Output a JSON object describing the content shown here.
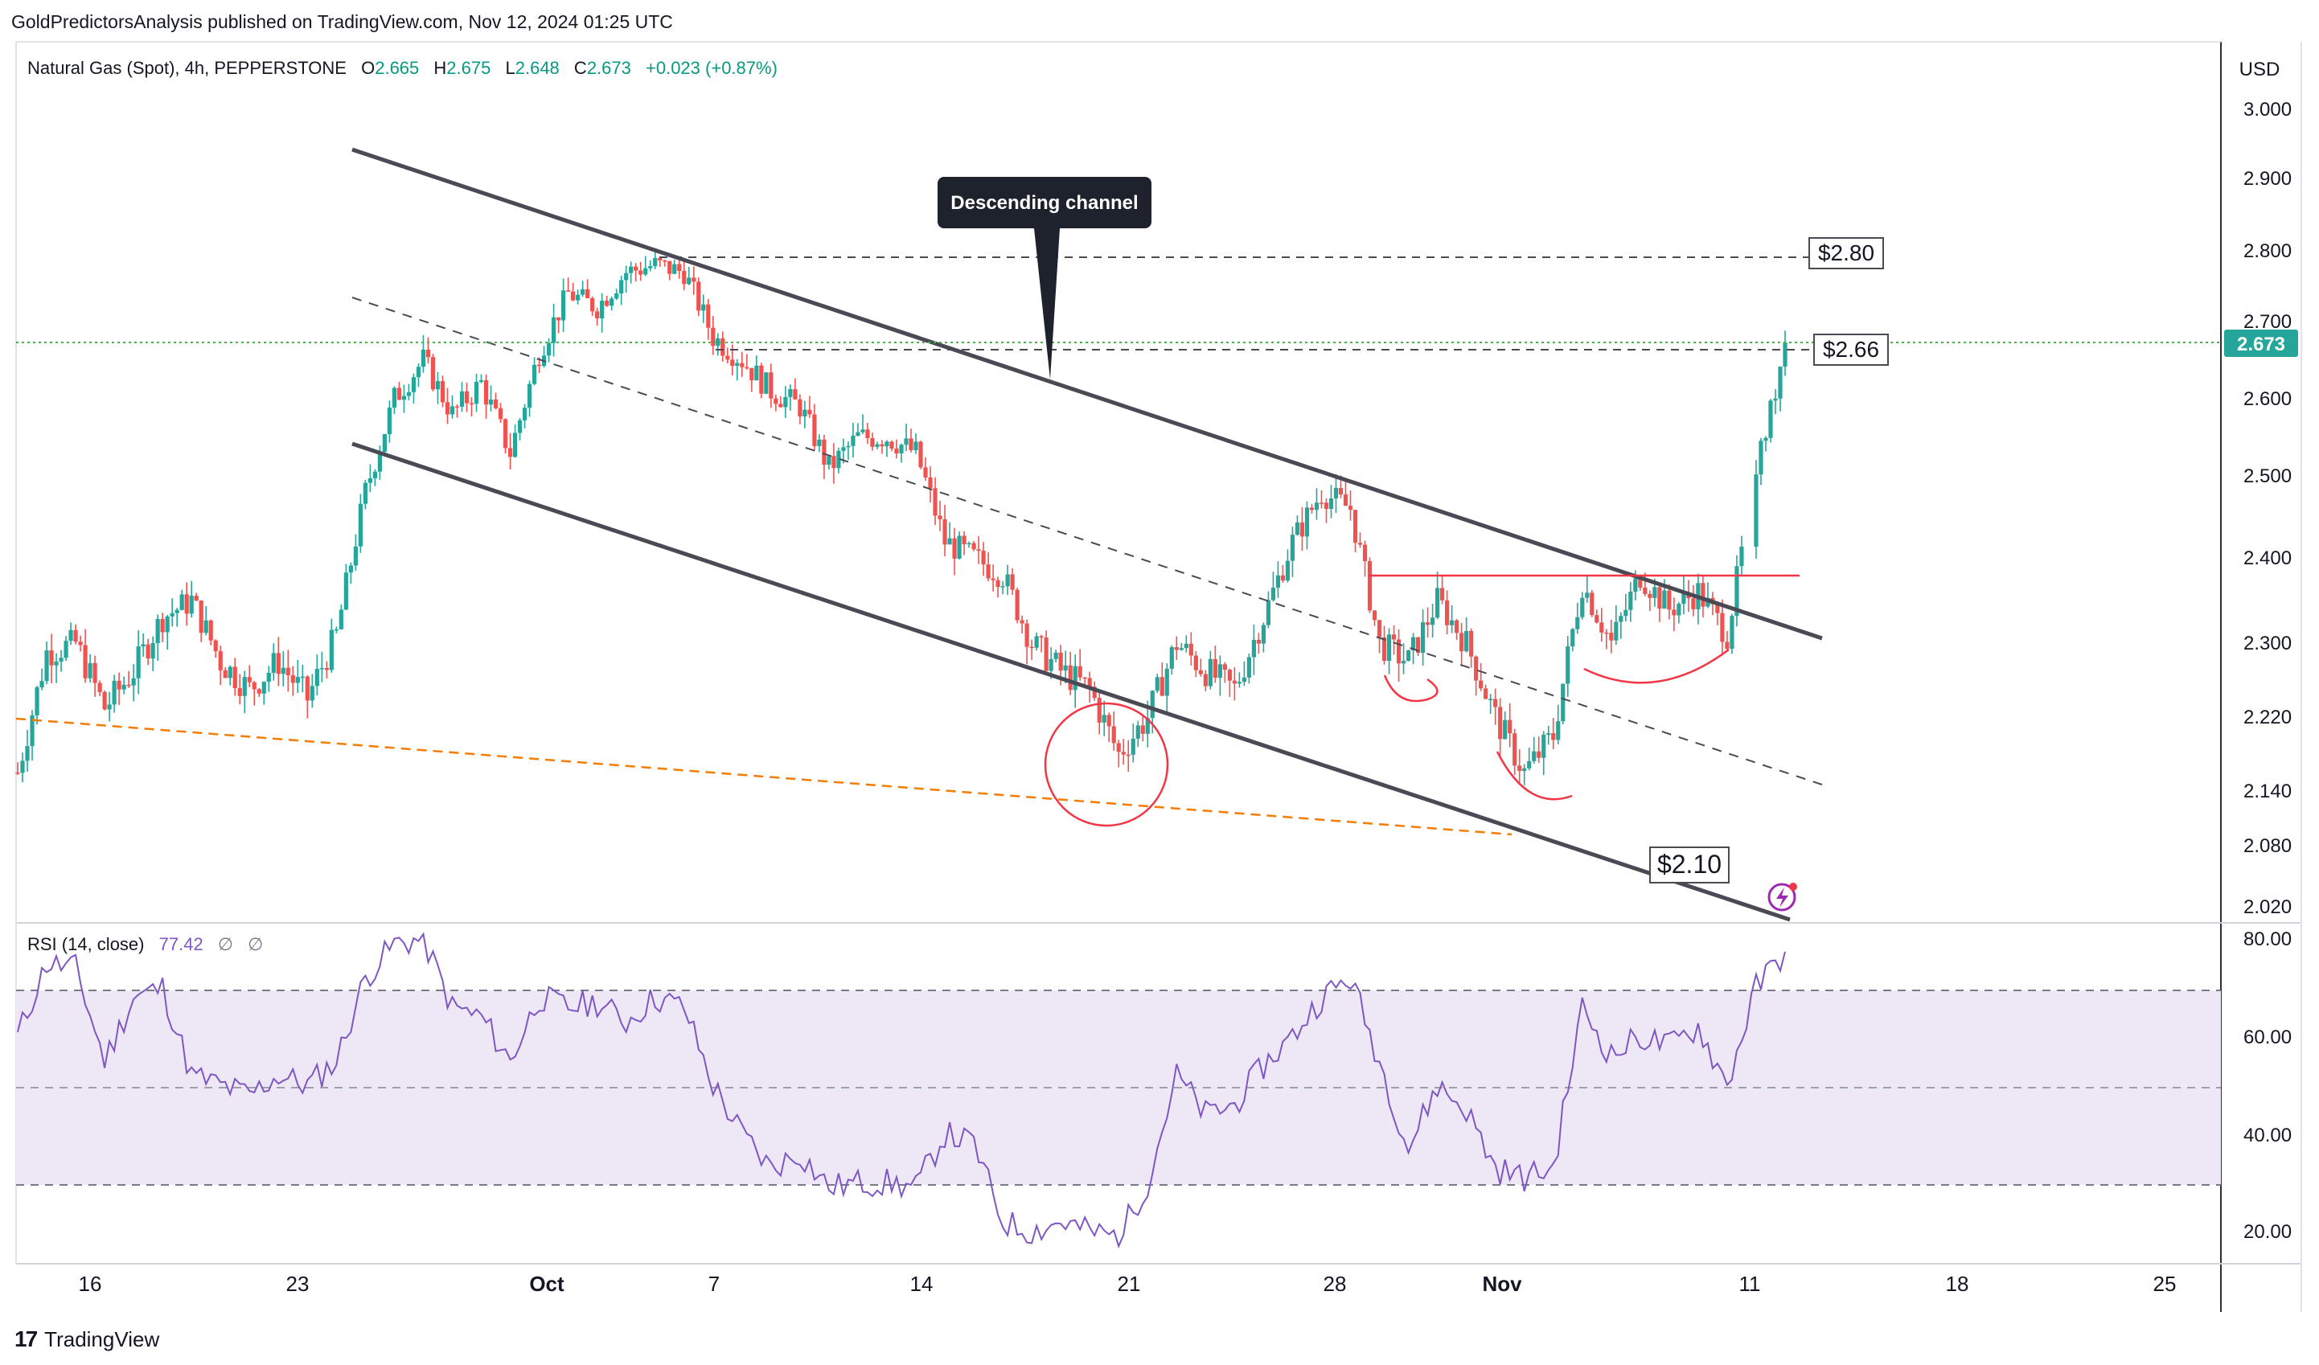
{
  "header": {
    "published_by": "GoldPredictorsAnalysis published on TradingView.com, Nov 12, 2024 01:25 UTC"
  },
  "legend": {
    "symbol": "Natural Gas (Spot), 4h, PEPPERSTONE",
    "o_label": "O",
    "o_value": "2.665",
    "h_label": "H",
    "h_value": "2.675",
    "l_label": "L",
    "l_value": "2.648",
    "c_label": "C",
    "c_value": "2.673",
    "change": "+0.023 (+0.87%)"
  },
  "rsi_legend": {
    "label": "RSI (14, close)",
    "value": "77.42",
    "extra1": "∅",
    "extra2": "∅"
  },
  "currency": "USD",
  "last_price": "2.673",
  "annotations": {
    "callout": "Descending channel",
    "level_280": "$2.80",
    "level_266": "$2.66",
    "level_210": "$2.10"
  },
  "footer": {
    "brand": "TradingView"
  },
  "colors": {
    "up": "#26a69a",
    "down": "#ef5350",
    "channel": "#4a4a55",
    "support_orange": "#f57c00",
    "neckline_red": "#f23645",
    "rsi_line": "#7e57c2",
    "rsi_band": "#ede7f6",
    "price_label_bg": "#26a69a"
  },
  "chart_data": [
    {
      "type": "candlestick",
      "title": "Natural Gas (Spot), 4h, PEPPERSTONE",
      "y_axis_ticks": [
        "3.000",
        "2.900",
        "2.800",
        "2.700",
        "2.600",
        "2.500",
        "2.400",
        "2.300",
        "2.220",
        "2.140",
        "2.080",
        "2.020"
      ],
      "x_axis_ticks": [
        "16",
        "23",
        "Oct",
        "7",
        "14",
        "21",
        "28",
        "Nov",
        "11",
        "18",
        "25"
      ],
      "ylim": [
        2.0,
        3.05
      ],
      "levels": [
        2.8,
        2.66,
        2.1
      ],
      "channel": "descending",
      "close_path": [
        [
          "Sep 12",
          2.16
        ],
        [
          "Sep 13",
          2.29
        ],
        [
          "Sep 14",
          2.3
        ],
        [
          "Sep 15",
          2.23
        ],
        [
          "Sep 16",
          2.27
        ],
        [
          "Sep 17",
          2.33
        ],
        [
          "Sep 18",
          2.35
        ],
        [
          "Sep 19",
          2.28
        ],
        [
          "Sep 20",
          2.25
        ],
        [
          "Sep 21",
          2.28
        ],
        [
          "Sep 22",
          2.24
        ],
        [
          "Sep 23",
          2.31
        ],
        [
          "Sep 24",
          2.48
        ],
        [
          "Sep 25",
          2.6
        ],
        [
          "Sep 26",
          2.65
        ],
        [
          "Sep 27",
          2.58
        ],
        [
          "Sep 28",
          2.62
        ],
        [
          "Sep 29",
          2.53
        ],
        [
          "Sep 30",
          2.66
        ],
        [
          "Oct 1",
          2.74
        ],
        [
          "Oct 2",
          2.72
        ],
        [
          "Oct 3",
          2.77
        ],
        [
          "Oct 4",
          2.78
        ],
        [
          "Oct 5",
          2.77
        ],
        [
          "Oct 6",
          2.68
        ],
        [
          "Oct 7",
          2.65
        ],
        [
          "Oct 8",
          2.61
        ],
        [
          "Oct 9",
          2.59
        ],
        [
          "Oct 10",
          2.51
        ],
        [
          "Oct 11",
          2.55
        ],
        [
          "Oct 12",
          2.55
        ],
        [
          "Oct 13",
          2.53
        ],
        [
          "Oct 14",
          2.42
        ],
        [
          "Oct 15",
          2.4
        ],
        [
          "Oct 16",
          2.38
        ],
        [
          "Oct 17",
          2.3
        ],
        [
          "Oct 18",
          2.27
        ],
        [
          "Oct 19",
          2.25
        ],
        [
          "Oct 20",
          2.18
        ],
        [
          "Oct 21",
          2.22
        ],
        [
          "Oct 22",
          2.3
        ],
        [
          "Oct 23",
          2.27
        ],
        [
          "Oct 24",
          2.25
        ],
        [
          "Oct 25",
          2.33
        ],
        [
          "Oct 26",
          2.42
        ],
        [
          "Oct 27",
          2.48
        ],
        [
          "Oct 28",
          2.46
        ],
        [
          "Oct 29",
          2.3
        ],
        [
          "Oct 30",
          2.28
        ],
        [
          "Oct 31",
          2.35
        ],
        [
          "Nov 1",
          2.3
        ],
        [
          "Nov 2",
          2.22
        ],
        [
          "Nov 3",
          2.16
        ],
        [
          "Nov 4",
          2.2
        ],
        [
          "Nov 5",
          2.37
        ],
        [
          "Nov 6",
          2.3
        ],
        [
          "Nov 7",
          2.38
        ],
        [
          "Nov 8",
          2.34
        ],
        [
          "Nov 9",
          2.36
        ],
        [
          "Nov 10",
          2.31
        ],
        [
          "Nov 11",
          2.5
        ],
        [
          "Nov 12",
          2.673
        ]
      ]
    },
    {
      "type": "line",
      "title": "RSI (14, close)",
      "y_axis_ticks": [
        "80.00",
        "60.00",
        "40.00",
        "20.00"
      ],
      "bands": [
        30,
        50,
        70
      ],
      "ylim": [
        15,
        82
      ],
      "last_value": 77.42,
      "x": [
        "Sep 12",
        "Sep 13",
        "Sep 14",
        "Sep 15",
        "Sep 16",
        "Sep 17",
        "Sep 18",
        "Sep 19",
        "Sep 20",
        "Sep 21",
        "Sep 22",
        "Sep 23",
        "Sep 24",
        "Sep 25",
        "Sep 26",
        "Sep 27",
        "Sep 28",
        "Sep 29",
        "Sep 30",
        "Oct 1",
        "Oct 2",
        "Oct 3",
        "Oct 4",
        "Oct 5",
        "Oct 6",
        "Oct 7",
        "Oct 8",
        "Oct 9",
        "Oct 10",
        "Oct 11",
        "Oct 12",
        "Oct 13",
        "Oct 14",
        "Oct 15",
        "Oct 16",
        "Oct 17",
        "Oct 18",
        "Oct 19",
        "Oct 20",
        "Oct 21",
        "Oct 22",
        "Oct 23",
        "Oct 24",
        "Oct 25",
        "Oct 26",
        "Oct 27",
        "Oct 28",
        "Oct 29",
        "Oct 30",
        "Oct 31",
        "Nov 1",
        "Nov 2",
        "Nov 3",
        "Nov 4",
        "Nov 5",
        "Nov 6",
        "Nov 7",
        "Nov 8",
        "Nov 9",
        "Nov 10",
        "Nov 11",
        "Nov 12"
      ],
      "values": [
        60,
        75,
        74,
        55,
        68,
        70,
        52,
        50,
        48,
        52,
        50,
        55,
        72,
        79,
        80,
        66,
        64,
        55,
        68,
        66,
        67,
        63,
        68,
        66,
        50,
        40,
        33,
        36,
        29,
        30,
        30,
        29,
        40,
        38,
        22,
        20,
        22,
        20,
        19,
        30,
        52,
        44,
        46,
        54,
        60,
        68,
        72,
        55,
        37,
        50,
        45,
        33,
        31,
        33,
        66,
        56,
        60,
        58,
        62,
        50,
        70,
        77.42
      ]
    }
  ]
}
